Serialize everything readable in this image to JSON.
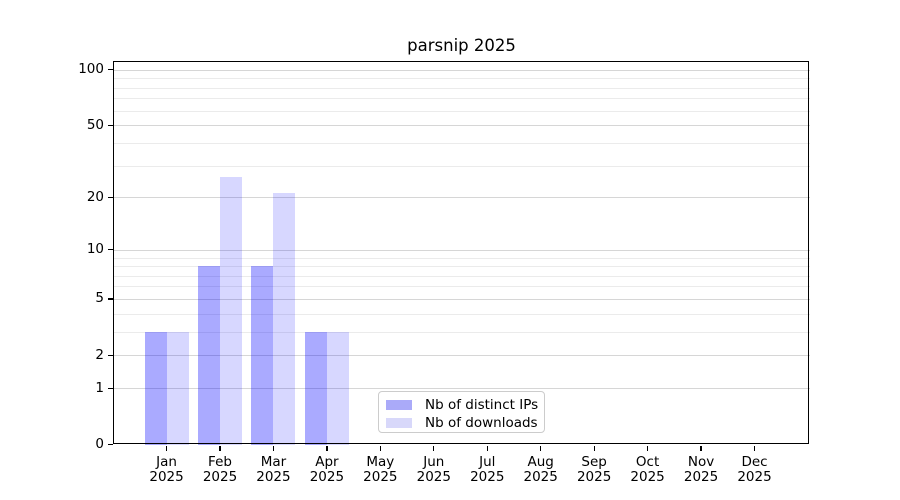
{
  "chart_data": {
    "type": "bar",
    "title": "parsnip 2025",
    "categories": [
      "Jan",
      "Feb",
      "Mar",
      "Apr",
      "May",
      "Jun",
      "Jul",
      "Aug",
      "Sep",
      "Oct",
      "Nov",
      "Dec"
    ],
    "category_year": "2025",
    "series": [
      {
        "name": "Nb of distinct IPs",
        "bar_color": "rgba(0,0,255,0.335)",
        "legend_color": "#aaaaf9",
        "values": [
          3,
          8,
          8,
          3,
          0,
          0,
          0,
          0,
          0,
          0,
          0,
          0
        ]
      },
      {
        "name": "Nb of downloads",
        "bar_color": "rgba(0,0,255,0.155)",
        "legend_color": "#d8d8fa",
        "values": [
          3,
          26,
          21,
          3,
          0,
          0,
          0,
          0,
          0,
          0,
          0,
          0
        ]
      }
    ],
    "yscale": "log1p",
    "ylim": [
      0,
      114
    ],
    "y_major_ticks": [
      0,
      1,
      2,
      5,
      10,
      20,
      50,
      100
    ],
    "y_minor_gridlines": [
      3,
      4,
      6,
      7,
      8,
      9,
      30,
      40,
      60,
      70,
      80,
      90
    ],
    "grid": true,
    "legend_position": "lower center",
    "axis_color": "#000000",
    "major_grid_color": "#d6d6d6",
    "minor_grid_color": "#ebebeb"
  }
}
